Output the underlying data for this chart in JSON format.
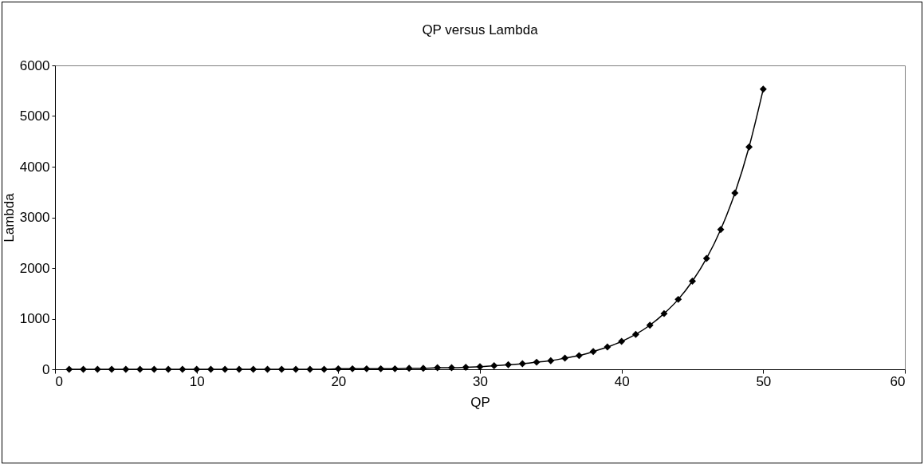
{
  "chart_data": {
    "type": "line",
    "title": "QP versus Lambda",
    "xlabel": "QP",
    "ylabel": "Lambda",
    "x": [
      1,
      2,
      3,
      4,
      5,
      6,
      7,
      8,
      9,
      10,
      11,
      12,
      13,
      14,
      15,
      16,
      17,
      18,
      19,
      20,
      21,
      22,
      23,
      24,
      25,
      26,
      27,
      28,
      29,
      30,
      31,
      32,
      33,
      34,
      35,
      36,
      37,
      38,
      39,
      40,
      41,
      42,
      43,
      44,
      45,
      46,
      47,
      48,
      49,
      50
    ],
    "series": [
      {
        "color": "#000000",
        "values": [
          0,
          0,
          0,
          0,
          0,
          0,
          0,
          0,
          0,
          0,
          0,
          0,
          0,
          0,
          0,
          0,
          0,
          0,
          0,
          10,
          10,
          10,
          10,
          10,
          20,
          20,
          30,
          30,
          40,
          50,
          70,
          90,
          110,
          140,
          170,
          220,
          270,
          350,
          440,
          550,
          690,
          870,
          1100,
          1380,
          1740,
          2190,
          2760,
          3480,
          4390,
          5530
        ]
      }
    ],
    "xlim": [
      0,
      60
    ],
    "xticks": [
      0,
      10,
      20,
      30,
      40,
      50,
      60
    ],
    "ylim": [
      0,
      6000
    ],
    "yticks": [
      0,
      1000,
      2000,
      3000,
      4000,
      5000,
      6000
    ],
    "grid": false,
    "legend": false,
    "marker": "diamond",
    "line_style": "solid"
  }
}
